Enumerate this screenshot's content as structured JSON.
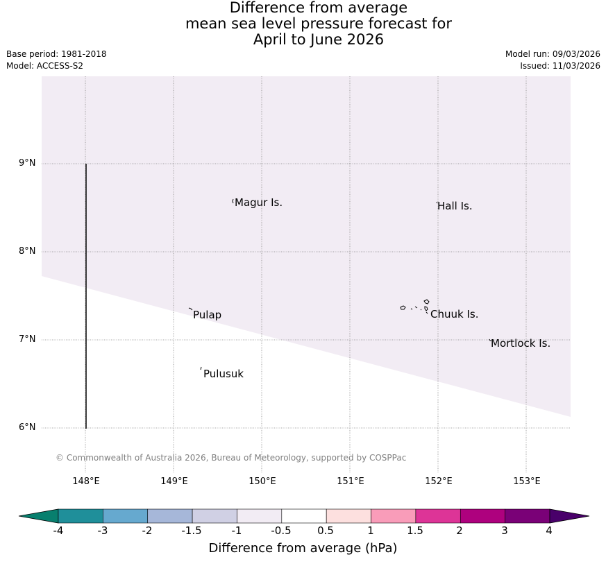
{
  "title": {
    "line1": "Difference from average",
    "line2": "mean sea level pressure forecast for",
    "line3": "April to June 2026"
  },
  "meta": {
    "base_period": "Base period: 1981-2018",
    "model": "Model: ACCESS-S2",
    "model_run": "Model run: 09/03/2026",
    "issued": "Issued: 11/03/2026"
  },
  "map": {
    "lat_labels": [
      "9°N",
      "8°N",
      "7°N",
      "6°N"
    ],
    "lon_labels": [
      "148°E",
      "149°E",
      "150°E",
      "151°E",
      "152°E",
      "153°E"
    ],
    "places": [
      "Magur Is.",
      "Hall Is.",
      "Pulap",
      "Chuuk Is.",
      "Mortlock Is.",
      "Pulusuk"
    ],
    "fill_category": "-1 to -0.5",
    "fill_color": "#f2ecf4",
    "copyright": "© Commonwealth of Australia 2026, Bureau of Meteorology, supported by COSPPac"
  },
  "colorbar": {
    "label": "Difference from average (hPa)",
    "ticks": [
      "-4",
      "-3",
      "-2",
      "-1.5",
      "-1",
      "-0.5",
      "0.5",
      "1",
      "1.5",
      "2",
      "3",
      "4"
    ],
    "colors": [
      "#087f6e",
      "#1f8f9a",
      "#66a9cf",
      "#a6b7d9",
      "#d0d0e4",
      "#f2ecf4",
      "#ffffff",
      "#fde0df",
      "#f99cb9",
      "#dd3497",
      "#ae017e",
      "#7a0177",
      "#49006a"
    ]
  }
}
